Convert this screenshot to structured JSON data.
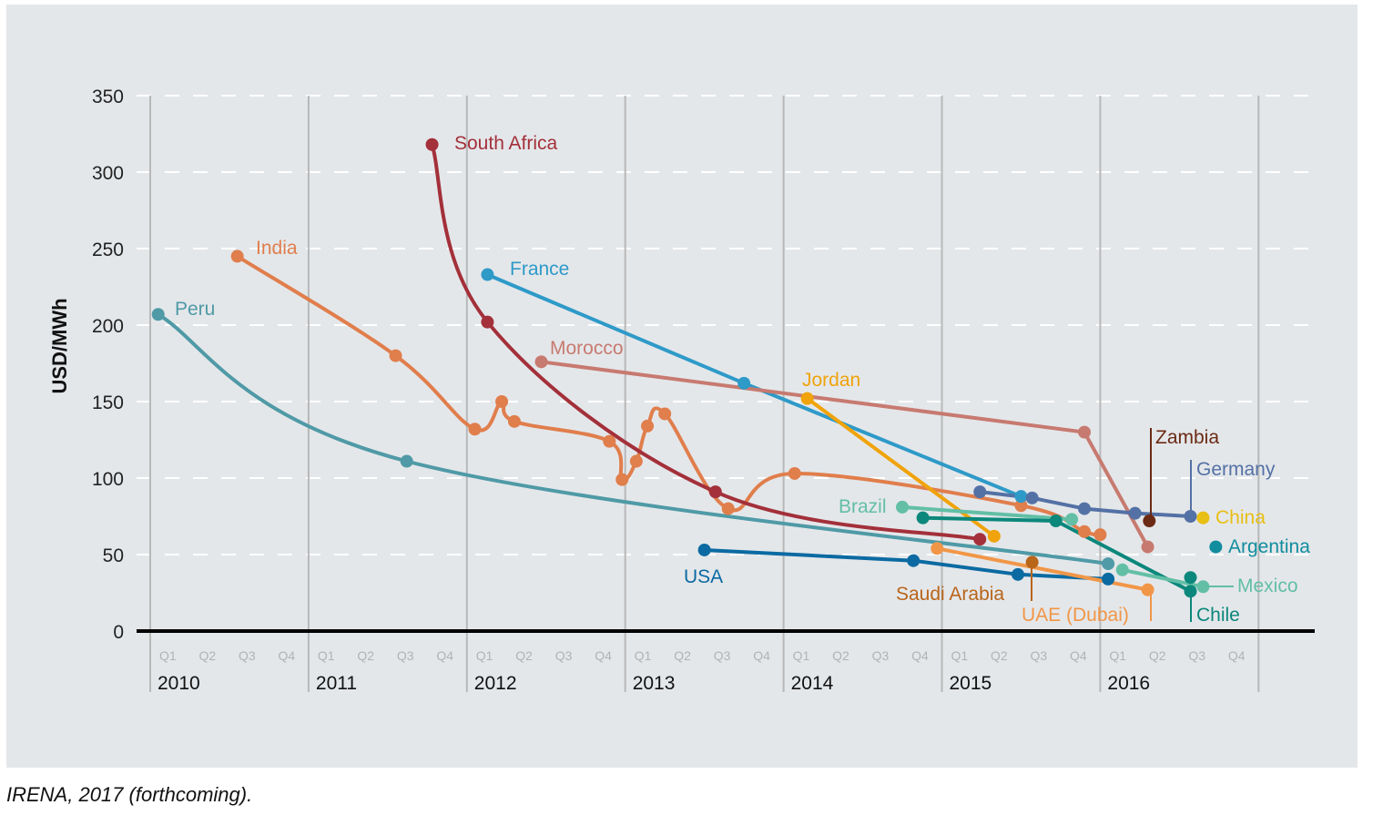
{
  "source_note": "IRENA, 2017 (forthcoming).",
  "chart_data": {
    "type": "line",
    "title": "",
    "xlabel": "",
    "ylabel": "USD/MWh",
    "ylim": [
      0,
      350
    ],
    "xlim": [
      2009.95,
      2017.4
    ],
    "yticks": [
      0,
      50,
      100,
      150,
      200,
      250,
      300,
      350
    ],
    "ytick_labels": [
      "0",
      "50",
      "100",
      "150",
      "200",
      "250",
      "300",
      "350"
    ],
    "years": [
      "2010",
      "2011",
      "2012",
      "2013",
      "2014",
      "2015",
      "2016"
    ],
    "quarters": [
      "Q1",
      "Q2",
      "Q3",
      "Q4"
    ],
    "grid": "horizontal dashed at y ticks, vertical solid at year boundaries",
    "legend": "inline labels next to series",
    "series": [
      {
        "name": "Peru",
        "color": "#4f9aa6",
        "smooth": true,
        "x": [
          2010.05,
          2011.62,
          2016.05
        ],
        "y": [
          207,
          111,
          44
        ]
      },
      {
        "name": "India",
        "color": "#e07e4c",
        "smooth": true,
        "x": [
          2010.55,
          2011.55,
          2012.05,
          2012.22,
          2012.3,
          2012.9,
          2012.98,
          2013.07,
          2013.14,
          2013.25,
          2013.65,
          2014.07,
          2015.5,
          2015.9,
          2016.0
        ],
        "y": [
          245,
          180,
          132,
          150,
          137,
          124,
          99,
          111,
          134,
          142,
          80,
          103,
          82,
          65,
          63
        ]
      },
      {
        "name": "South Africa",
        "color": "#a3303a",
        "smooth": true,
        "x": [
          2011.78,
          2012.13,
          2013.57,
          2015.24
        ],
        "y": [
          318,
          202,
          91,
          60
        ]
      },
      {
        "name": "France",
        "color": "#2e9ac8",
        "smooth": false,
        "x": [
          2012.13,
          2013.75,
          2015.5
        ],
        "y": [
          233,
          162,
          88
        ]
      },
      {
        "name": "Morocco",
        "color": "#c77a70",
        "smooth": false,
        "x": [
          2012.47,
          2015.9,
          2016.3
        ],
        "y": [
          176,
          130,
          55
        ]
      },
      {
        "name": "Jordan",
        "color": "#f0a30a",
        "smooth": false,
        "x": [
          2014.15,
          2015.33
        ],
        "y": [
          152,
          62
        ]
      },
      {
        "name": "USA",
        "color": "#0b6aa2",
        "smooth": false,
        "x": [
          2013.5,
          2014.82,
          2015.48,
          2016.05
        ],
        "y": [
          53,
          46,
          37,
          34
        ]
      },
      {
        "name": "Brazil",
        "color": "#62bfa6",
        "smooth": false,
        "x": [
          2014.75,
          2015.82
        ],
        "y": [
          81,
          73
        ]
      },
      {
        "name": "Chile",
        "color": "#0c877b",
        "smooth": false,
        "x": [
          2014.88,
          2015.72,
          2016.57
        ],
        "y": [
          74,
          72,
          26
        ]
      },
      {
        "name": "Saudi Arabia",
        "color": "#b9651a",
        "smooth": false,
        "x": [
          2015.57
        ],
        "y": [
          45
        ]
      },
      {
        "name": "UAE (Dubai)",
        "color": "#f19647",
        "smooth": false,
        "x": [
          2014.97,
          2016.3
        ],
        "y": [
          54,
          27
        ]
      },
      {
        "name": "Germany",
        "color": "#5471a5",
        "smooth": false,
        "x": [
          2015.24,
          2015.57,
          2015.9,
          2016.22,
          2016.57
        ],
        "y": [
          91,
          87,
          80,
          77,
          75
        ]
      },
      {
        "name": "Zambia",
        "color": "#6b2a14",
        "smooth": false,
        "x": [
          2016.31
        ],
        "y": [
          72
        ]
      },
      {
        "name": "China",
        "color": "#e8bf14",
        "smooth": false,
        "x": [
          2016.65
        ],
        "y": [
          74
        ]
      },
      {
        "name": "Argentina",
        "color": "#118d9e",
        "smooth": false,
        "x": [
          2016.73
        ],
        "y": [
          55
        ]
      },
      {
        "name": "Mexico",
        "color": "#62bfa6",
        "smooth": false,
        "x": [
          2016.14,
          2016.65
        ],
        "y": [
          40,
          29
        ]
      },
      {
        "name": "Chile (Q3 2016)",
        "label_hidden": true,
        "color": "#0c877b",
        "smooth": false,
        "x": [
          2016.57
        ],
        "y": [
          35
        ]
      }
    ],
    "labels": [
      {
        "series": "Peru",
        "text": "Peru"
      },
      {
        "series": "India",
        "text": "India"
      },
      {
        "series": "South Africa",
        "text": "South Africa"
      },
      {
        "series": "France",
        "text": "France"
      },
      {
        "series": "Morocco",
        "text": "Morocco"
      },
      {
        "series": "Jordan",
        "text": "Jordan"
      },
      {
        "series": "USA",
        "text": "USA"
      },
      {
        "series": "Brazil",
        "text": "Brazil"
      },
      {
        "series": "Saudi Arabia",
        "text": "Saudi Arabia"
      },
      {
        "series": "UAE (Dubai)",
        "text": "UAE (Dubai)"
      },
      {
        "series": "Zambia",
        "text": "Zambia"
      },
      {
        "series": "Germany",
        "text": "Germany"
      },
      {
        "series": "China",
        "text": "China"
      },
      {
        "series": "Argentina",
        "text": "Argentina"
      },
      {
        "series": "Mexico",
        "text": "Mexico"
      },
      {
        "series": "Chile",
        "text": "Chile"
      }
    ]
  }
}
